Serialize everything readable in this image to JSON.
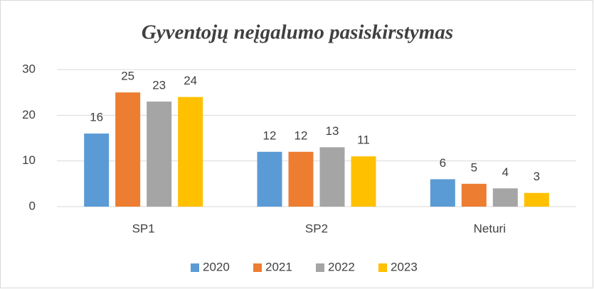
{
  "chart_data": {
    "type": "bar",
    "title": "Gyventojų neįgalumo pasiskirstymas",
    "categories": [
      "SP1",
      "SP2",
      "Neturi"
    ],
    "series": [
      {
        "name": "2020",
        "color": "#5b9bd5",
        "values": [
          16,
          12,
          6
        ]
      },
      {
        "name": "2021",
        "color": "#ed7d31",
        "values": [
          25,
          12,
          5
        ]
      },
      {
        "name": "2022",
        "color": "#a5a5a5",
        "values": [
          23,
          13,
          4
        ]
      },
      {
        "name": "2023",
        "color": "#ffc000",
        "values": [
          24,
          11,
          3
        ]
      }
    ],
    "ylim": [
      0,
      30
    ],
    "yticks": [
      0,
      10,
      20,
      30
    ],
    "grid": true,
    "legend": "bottom"
  }
}
